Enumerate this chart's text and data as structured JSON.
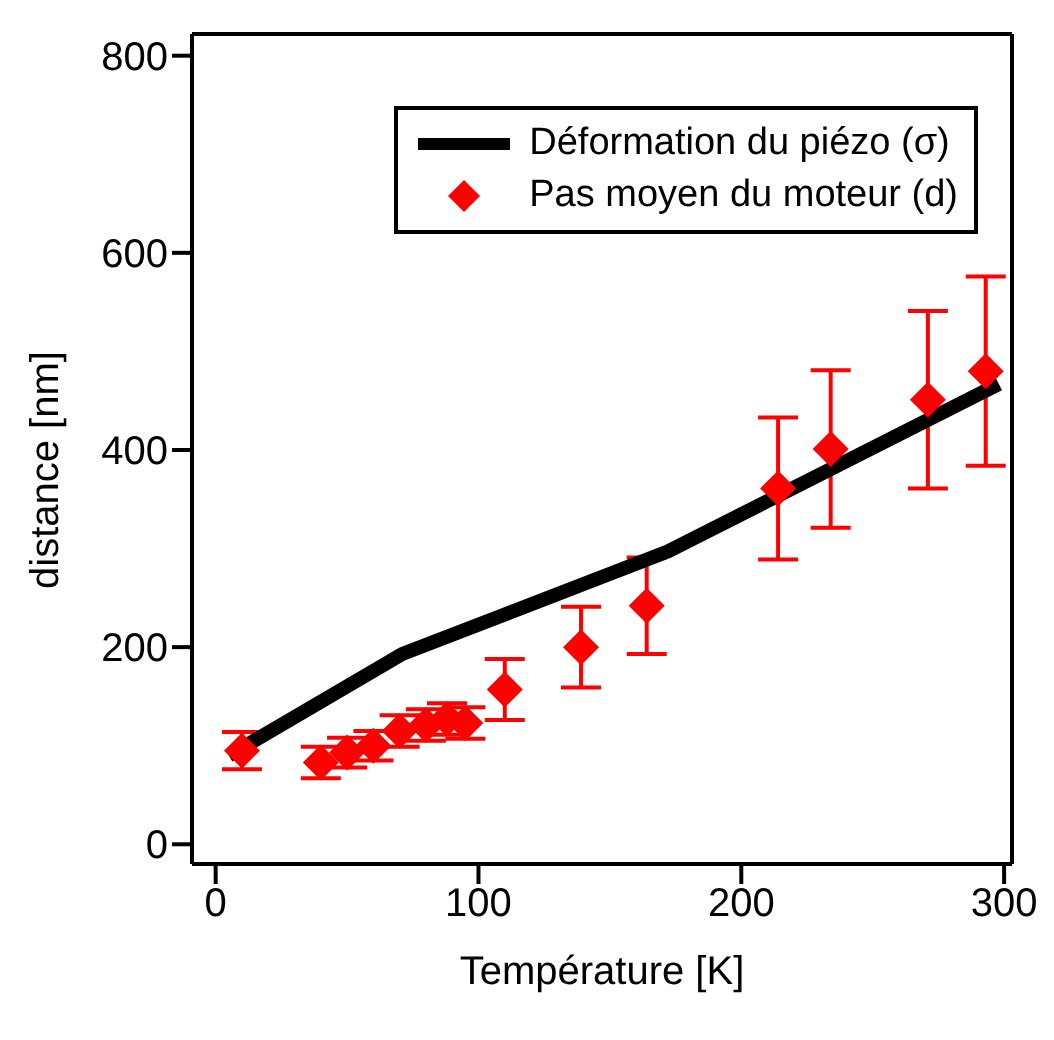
{
  "chart_data": {
    "type": "scatter",
    "xlabel": "Température [K]",
    "ylabel": "distance [nm]",
    "xlim": [
      -9,
      303
    ],
    "ylim": [
      -20,
      822
    ],
    "xticks": [
      0,
      100,
      200,
      300
    ],
    "yticks": [
      0,
      200,
      400,
      600,
      800
    ],
    "grid": false,
    "legend": "top right",
    "series": [
      {
        "name": "Déformation du piézo (σ)",
        "type": "line",
        "color": "#000000",
        "marker": "none",
        "line_style": "solid",
        "x": [
          5,
          71,
          172,
          298
        ],
        "values": [
          90,
          193,
          297,
          467
        ]
      },
      {
        "name": "Pas moyen du moteur (d)",
        "type": "scatter",
        "color": "#ff0000",
        "marker": "diamond",
        "x": [
          10,
          40,
          50,
          60,
          70,
          80,
          88,
          95,
          110,
          139,
          164,
          214,
          234,
          271,
          293
        ],
        "values": [
          95,
          83,
          93,
          100,
          115,
          121,
          127,
          123,
          157,
          200,
          242,
          361,
          401,
          451,
          480
        ],
        "errors": [
          19,
          16,
          15,
          15,
          16,
          16,
          16,
          16,
          31,
          41,
          49,
          72,
          80,
          90,
          96
        ]
      }
    ]
  }
}
